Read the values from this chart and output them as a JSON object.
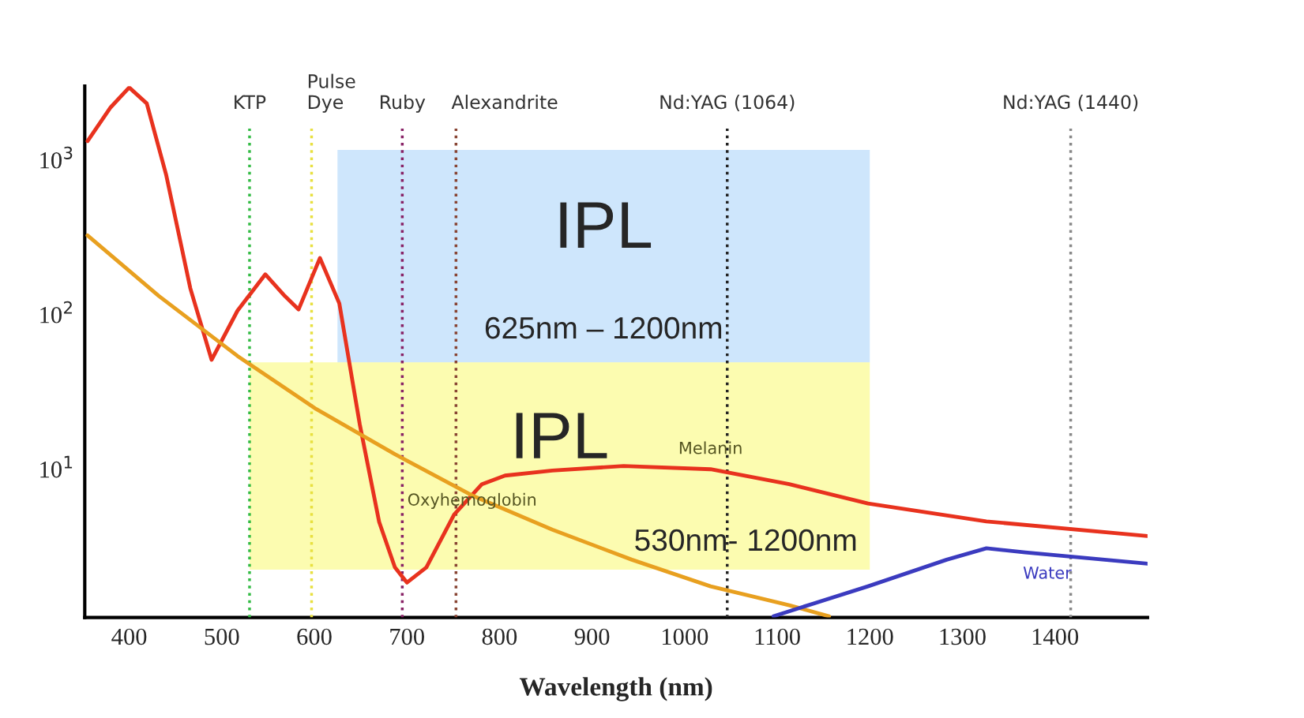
{
  "chart_data": {
    "type": "line",
    "xlabel": "Wavelength (nm)",
    "log": "y",
    "x": [
      355,
      380,
      400,
      419,
      440,
      466,
      489,
      517,
      547,
      568,
      583,
      606,
      627,
      649,
      670,
      687,
      700,
      721,
      751,
      781,
      806,
      857,
      934,
      1028,
      1113,
      1198,
      1326,
      1500
    ],
    "series": [
      {
        "name": "Melanin",
        "color": "#e8321e",
        "values": [
          1325,
          2190,
          2940,
          2320,
          798,
          148,
          51,
          106,
          182,
          132,
          108,
          232,
          118,
          19.6,
          4.56,
          2.32,
          1.85,
          2.32,
          5.1,
          8.0,
          9.1,
          9.8,
          10.5,
          10,
          8.0,
          6.0,
          4.6,
          3.7
        ]
      },
      {
        "name": "Oxyhemoglobin",
        "color": "#e8a020",
        "x": [
          355,
          432,
          517,
          602,
          687,
          772,
          857,
          943,
          1028,
          1113,
          1156
        ],
        "values": [
          325,
          132,
          54,
          24.5,
          12.5,
          6.7,
          4.07,
          2.6,
          1.75,
          1.32,
          1.12
        ]
      },
      {
        "name": "Water",
        "color": "#3b3bbf",
        "x": [
          1096,
          1198,
          1283,
          1326,
          1368,
          1500
        ],
        "values": [
          1.12,
          1.75,
          2.6,
          3.08,
          2.9,
          2.45
        ]
      }
    ],
    "xlim": [
      352,
      1500
    ],
    "ylim": [
      1.1,
      3000
    ],
    "xticks": [
      400,
      500,
      600,
      700,
      800,
      900,
      1000,
      1100,
      1200,
      1300,
      1400
    ],
    "yticks": [
      {
        "value": 10,
        "label": "10$^{1}$"
      },
      {
        "value": 100,
        "label": "10$^{2}$"
      },
      {
        "value": 1000,
        "label": "10$^{3}$"
      }
    ],
    "marker": "none",
    "line_style": "solid",
    "grid": false,
    "legend": false,
    "ref_lines": [
      {
        "axis": "x",
        "value": 530,
        "label": "KTP",
        "color": "#33bb44",
        "line_style": "dotted"
      },
      {
        "axis": "x",
        "value": 597,
        "label": "Pulse\nDye",
        "color": "#e8e040",
        "line_style": "dotted"
      },
      {
        "axis": "x",
        "value": 695,
        "label": "Ruby",
        "color": "#882266",
        "line_style": "dotted"
      },
      {
        "axis": "x",
        "value": 753,
        "label": "Alexandrite",
        "color": "#884433",
        "line_style": "dotted"
      },
      {
        "axis": "x",
        "value": 1046,
        "label": "Nd:YAG (1064)",
        "color": "#222222",
        "line_style": "dotted"
      },
      {
        "axis": "x",
        "value": 1417,
        "label": "Nd:YAG (1440)",
        "color": "#888888",
        "line_style": "dotted"
      }
    ],
    "bands": [
      {
        "axis": "x",
        "from": 625,
        "to": 1200,
        "label": "IPL\n625nm – 1200nm",
        "color": "#a6d1fa"
      },
      {
        "axis": "x",
        "from": 530,
        "to": 1200,
        "label": "IPL\n530nm- 1200nm",
        "color": "#fafa70"
      }
    ]
  }
}
